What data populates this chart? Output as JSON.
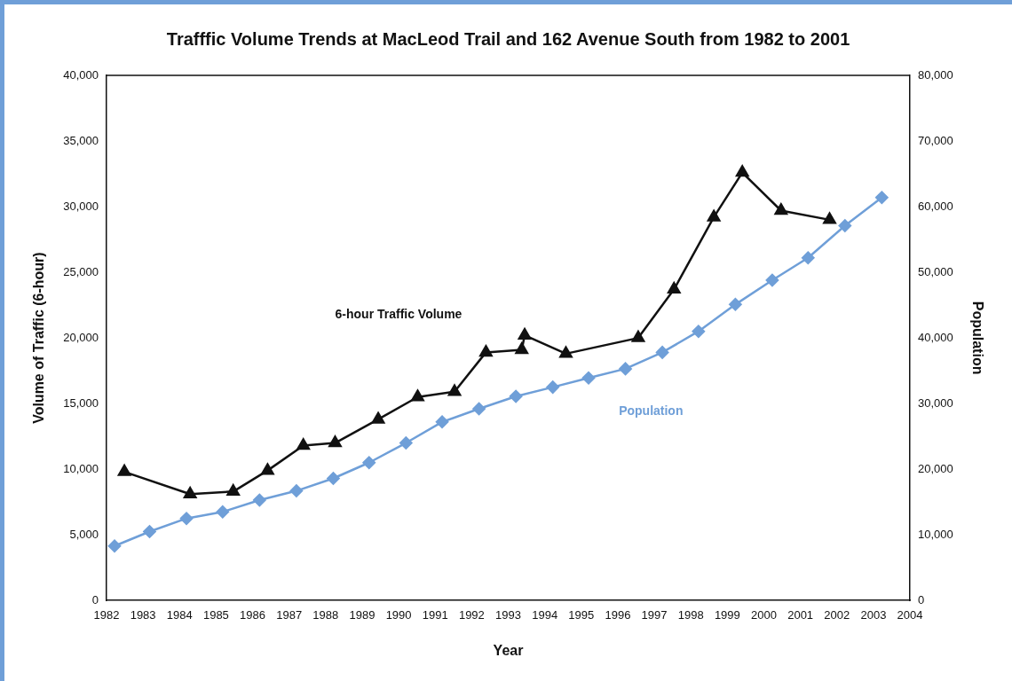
{
  "chart_data": {
    "type": "line",
    "title": "Trafffic Volume Trends at MacLeod Trail and 162 Avenue South from 1982 to 2001",
    "xlabel": "Year",
    "ylabel": "Volume of Traffic (6-hour)",
    "y2label": "Population",
    "xlim": [
      1982,
      2004
    ],
    "xticks": [
      1982,
      1983,
      1984,
      1985,
      1986,
      1987,
      1988,
      1989,
      1990,
      1991,
      1992,
      1993,
      1994,
      1995,
      1996,
      1997,
      1998,
      1999,
      2000,
      2001,
      2002,
      2003,
      2004
    ],
    "ylim": [
      0,
      40000
    ],
    "yticks": [
      0,
      {
        "value": 5000,
        "label": "5,000"
      },
      {
        "value": 10000,
        "label": "10,000"
      },
      {
        "value": 15000,
        "label": "15,000"
      },
      {
        "value": 20000,
        "label": "20,000"
      },
      {
        "value": 25000,
        "label": "25,000"
      },
      {
        "value": 30000,
        "label": "30,000"
      },
      {
        "value": 35000,
        "label": "35,000"
      },
      {
        "value": 40000,
        "label": "40,000"
      }
    ],
    "y2lim": [
      0,
      80000
    ],
    "y2ticks": [
      0,
      {
        "value": 10000,
        "label": "10,000"
      },
      {
        "value": 20000,
        "label": "20,000"
      },
      {
        "value": 30000,
        "label": "30,000"
      },
      {
        "value": 40000,
        "label": "40,000"
      },
      {
        "value": 50000,
        "label": "50,000"
      },
      {
        "value": 60000,
        "label": "60,000"
      },
      {
        "value": 70000,
        "label": "70,000"
      },
      {
        "value": 80000,
        "label": "80,000"
      }
    ],
    "grid": false,
    "legend": false,
    "series": [
      {
        "name": "6-hour Traffic Volume",
        "color": "#111111",
        "marker": "triangle",
        "x": [
          1982.49,
          1984.29,
          1985.47,
          1986.41,
          1987.39,
          1988.26,
          1989.44,
          1990.52,
          1991.53,
          1992.39,
          1993.37,
          1993.45,
          1994.58,
          1996.56,
          1997.54,
          1998.63,
          1999.41,
          2000.47,
          2001.8
        ],
        "values": [
          9800,
          8100,
          8300,
          9900,
          11800,
          12000,
          13800,
          15500,
          15900,
          18900,
          19100,
          20200,
          18800,
          20000,
          23700,
          29200,
          32600,
          29700,
          29000
        ]
      },
      {
        "name": "Population",
        "color": "#6f9fd8",
        "marker": "diamond",
        "axis": "y2",
        "x": [
          1982.22,
          1983.18,
          1984.19,
          1985.18,
          1986.19,
          1987.2,
          1988.21,
          1989.19,
          1990.2,
          1991.19,
          1992.2,
          1993.21,
          1994.22,
          1995.2,
          1996.21,
          1997.22,
          1998.21,
          1999.22,
          2000.23,
          2001.21,
          2002.22,
          2003.23
        ],
        "values": [
          8300,
          10500,
          12500,
          13500,
          15300,
          16700,
          18600,
          21000,
          24000,
          27200,
          29200,
          31100,
          32500,
          33900,
          35300,
          37800,
          41000,
          45100,
          48800,
          52200,
          57100,
          61400
        ]
      }
    ]
  }
}
